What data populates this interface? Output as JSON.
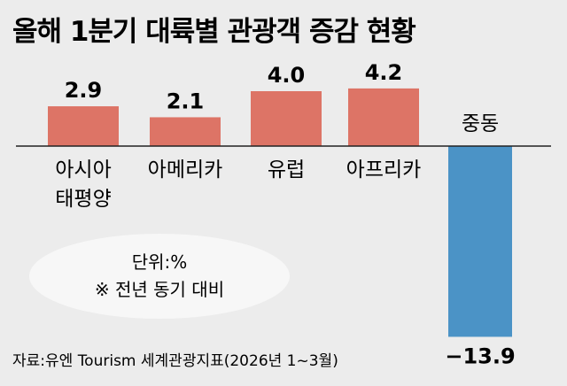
{
  "chart_data": {
    "type": "bar",
    "title": "올해 1분기 대륙별 관광객 증감 현황",
    "categories": [
      [
        "아시아",
        "태평양"
      ],
      [
        "아메리카"
      ],
      [
        "유럽"
      ],
      [
        "아프리카"
      ],
      [
        "중동"
      ]
    ],
    "values": [
      2.9,
      2.1,
      4.0,
      4.2,
      -13.9
    ],
    "value_labels": [
      "2.9",
      "2.1",
      "4.0",
      "4.2",
      "−13.9"
    ],
    "colors": {
      "positive": "#dd7466",
      "negative": "#4b93c6",
      "ellipse": "#f7f7f7"
    },
    "grid": false,
    "legend": null
  },
  "note": {
    "unit": "단위:%",
    "comparison": "※ 전년 동기 대비"
  },
  "source": "자료:유엔 Tourism 세계관광지표(2026년 1~3월)"
}
